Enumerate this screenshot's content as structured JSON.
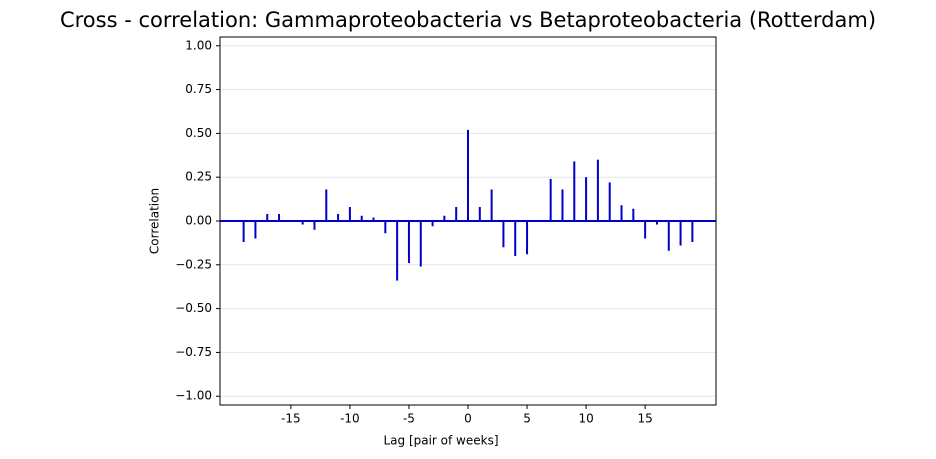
{
  "chart_data": {
    "type": "stem",
    "title": "Cross - correlation: Gammaproteobacteria vs Betaproteobacteria (Rotterdam)",
    "xlabel": "Lag [pair of weeks]",
    "ylabel": "Correlation",
    "x": [
      -19,
      -18,
      -17,
      -16,
      -15,
      -14,
      -13,
      -12,
      -11,
      -10,
      -9,
      -8,
      -7,
      -6,
      -5,
      -4,
      -3,
      -2,
      -1,
      0,
      1,
      2,
      3,
      4,
      5,
      6,
      7,
      8,
      9,
      10,
      11,
      12,
      13,
      14,
      15,
      16,
      17,
      18,
      19
    ],
    "values": [
      -0.12,
      -0.1,
      0.04,
      0.04,
      0.0,
      -0.02,
      -0.05,
      0.18,
      0.04,
      0.08,
      0.03,
      0.02,
      -0.07,
      -0.34,
      -0.24,
      -0.26,
      -0.03,
      0.03,
      0.08,
      0.52,
      0.08,
      0.18,
      -0.15,
      -0.2,
      -0.19,
      0.0,
      0.24,
      0.18,
      0.34,
      0.25,
      0.35,
      0.22,
      0.09,
      0.07,
      -0.1,
      -0.02,
      -0.17,
      -0.14,
      -0.12
    ],
    "color": "#0000c8",
    "xlim": [
      -21,
      21
    ],
    "ylim": [
      -1.05,
      1.05
    ],
    "xticks": [
      -15,
      -10,
      -5,
      0,
      5,
      10,
      15
    ],
    "yticks": [
      {
        "value": -1,
        "label": "−1.00"
      },
      {
        "value": -0.75,
        "label": "−0.75"
      },
      {
        "value": -0.5,
        "label": "−0.50"
      },
      {
        "value": -0.25,
        "label": "−0.25"
      },
      {
        "value": 0,
        "label": "0.00"
      },
      {
        "value": 0.25,
        "label": "0.25"
      },
      {
        "value": 0.5,
        "label": "0.50"
      },
      {
        "value": 0.75,
        "label": "0.75"
      },
      {
        "value": 1,
        "label": "1.00"
      }
    ],
    "grid": true
  }
}
